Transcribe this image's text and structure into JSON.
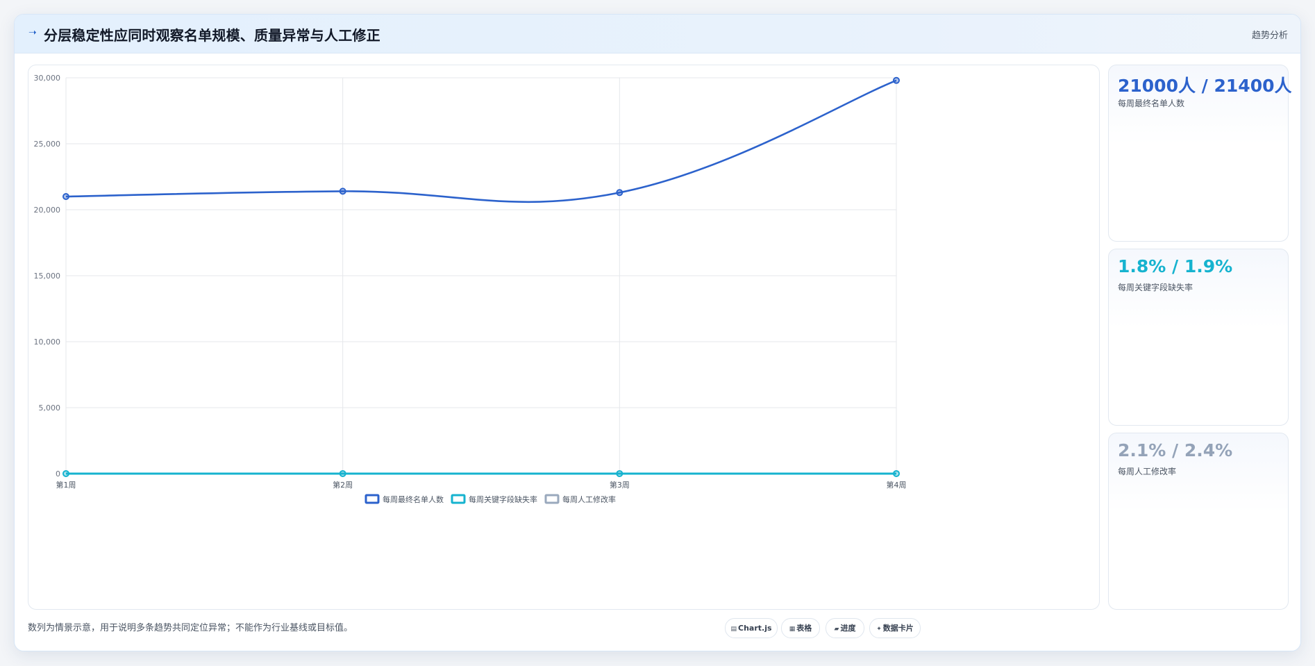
{
  "header": {
    "icon": "trend-line-icon",
    "title": "分层稳定性应同时观察名单规模、质量异常与人工修正",
    "tag": "趋势分析"
  },
  "chart_data": {
    "type": "line",
    "categories": [
      "第1周",
      "第2周",
      "第3周",
      "第4周"
    ],
    "ylim": [
      0,
      30000
    ],
    "yticks": [
      "0",
      "5,000",
      "10,000",
      "15,000",
      "20,000",
      "25,000",
      "30,000"
    ],
    "ytick_values": [
      0,
      5000,
      10000,
      15000,
      20000,
      25000,
      30000
    ],
    "grid": true,
    "legend_position": "bottom",
    "series": [
      {
        "name": "每周最终名单人数",
        "values": [
          21000,
          21400,
          21300,
          29800
        ],
        "color": "#2c62cc",
        "show_line": true
      },
      {
        "name": "每周关键字段缺失率",
        "values": [
          1.8,
          1.9,
          1.8,
          1.9
        ],
        "color": "#16b3cf",
        "show_line": true
      },
      {
        "name": "每周人工修改率",
        "values": [
          2.1,
          2.4,
          2.2,
          2.3
        ],
        "color": "#9aa9bd",
        "show_line": false
      }
    ]
  },
  "stats": [
    {
      "value": "21000人 / 21400人",
      "label": "每周最终名单人数",
      "color": "#2c62cc"
    },
    {
      "value": "1.8% / 1.9%",
      "label": "每周关键字段缺失率",
      "color": "#16b3cf"
    },
    {
      "value": "2.1% / 2.4%",
      "label": "每周人工修改率",
      "color": "#94a3b8"
    }
  ],
  "footnote": "数列为情景示意，用于说明多条趋势共同定位异常；不能作为行业基线或目标值。",
  "chips": [
    {
      "icon": "chart-icon",
      "glyph": "▤",
      "label": "Chart.js"
    },
    {
      "icon": "table-icon",
      "glyph": "▦",
      "label": "表格"
    },
    {
      "icon": "progress-icon",
      "glyph": "▰",
      "label": "进度"
    },
    {
      "icon": "data-card-icon",
      "glyph": "✦",
      "label": "数据卡片"
    }
  ]
}
